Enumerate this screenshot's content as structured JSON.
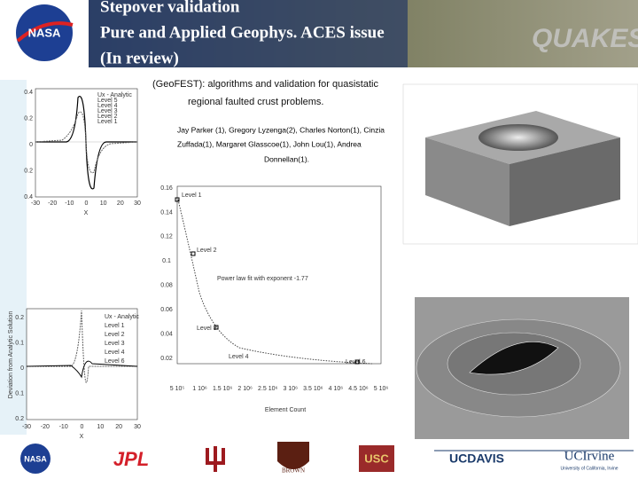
{
  "header": {
    "title_lines": [
      "Stepover validation",
      "Pure and Applied Geophys. ACES issue",
      "(In review)"
    ],
    "logo": "NASA",
    "brand": "QUAKESIM"
  },
  "paper": {
    "title_lines": [
      "(GeoFEST): algorithms and validation for quasistatic",
      "regional faulted crust problems."
    ],
    "author_lines": [
      "Jay Parker (1), Gregory Lyzenga(2), Charles Norton(1), Cinzia",
      "Zuffada(1), Margaret Glasscoe(1), John Lou(1), Andrea",
      "Donnellan(1)."
    ]
  },
  "top_left_plot": {
    "legend": [
      "Ux - Analytic",
      "Level 5",
      "Level 4",
      "Level 3",
      "Level 2",
      "Level 1"
    ],
    "yticks": [
      "0.4",
      "0.2",
      "0",
      "0.2",
      "0.4"
    ],
    "xticks": [
      "-30",
      "-20",
      "-10",
      "0",
      "10",
      "20",
      "30"
    ],
    "xlabel": "X"
  },
  "convergence_plot": {
    "yticks": [
      "0.16",
      "0.14",
      "0.12",
      "0.1",
      "0.08",
      "0.06",
      "0.04",
      "0.02"
    ],
    "xticks": [
      "5 10⁵",
      "1 10⁶",
      "1.5 10⁶",
      "2 10⁶",
      "2.5 10⁶",
      "3 10⁶",
      "3.5 10⁶",
      "4 10⁶",
      "4.5 10⁶",
      "5 10⁶"
    ],
    "xlabel": "Element Count",
    "annotations": [
      "Level 1",
      "Level 2",
      "Power law fit with exponent -1.77",
      "Level 3",
      "Level 4",
      "Level 6"
    ]
  },
  "bottom_left_plot": {
    "ylabel": "Deviation from Analytic Solution",
    "legend": [
      "Ux - Analytic",
      "Level 1",
      "Level 2",
      "Level 3",
      "Level 4",
      "Level 6"
    ],
    "yticks": [
      "0.2",
      "0.1",
      "0",
      "0.1",
      "0.2"
    ],
    "xticks": [
      "-30",
      "-20",
      "-10",
      "0",
      "10",
      "20",
      "30"
    ],
    "xlabel": "X"
  },
  "footer": {
    "logos": [
      "NASA",
      "JPL",
      "BROWN",
      "USC",
      "UCDAVIS",
      "UCIrvine"
    ],
    "irvine_sub": "University of California, Irvine"
  }
}
